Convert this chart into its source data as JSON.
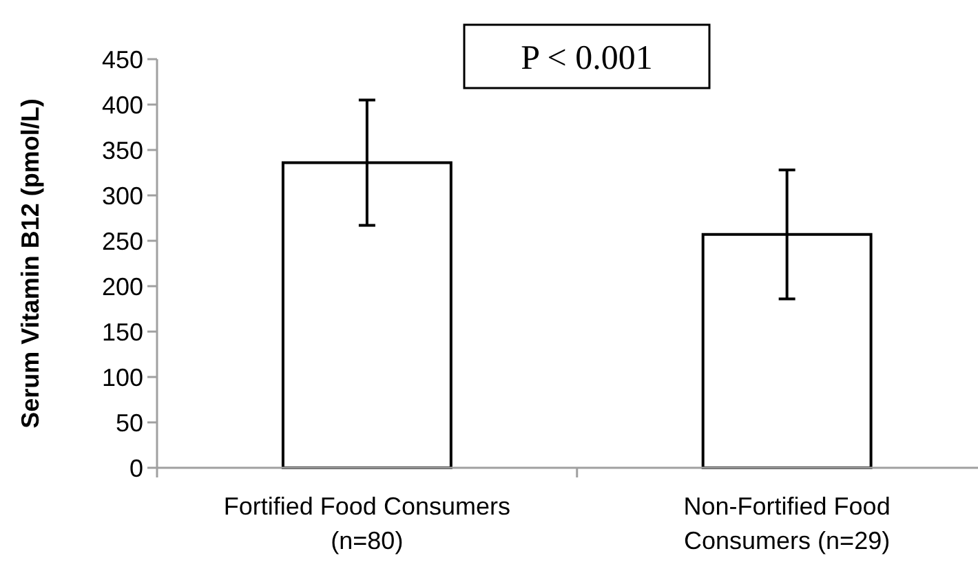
{
  "chart_data": {
    "type": "bar",
    "ylabel": "Serum Vitamin B12 (pmol/L)",
    "categories": [
      "Fortified Food Consumers\n(n=80)",
      "Non-Fortified Food\nConsumers (n=29)"
    ],
    "values": [
      336,
      257
    ],
    "errors": [
      69,
      71
    ],
    "color": "#ffffff",
    "ylim": [
      0,
      450
    ],
    "yticks": [
      0,
      50,
      100,
      150,
      200,
      250,
      300,
      350,
      400,
      450
    ],
    "annotations": [
      "P < 0.001"
    ],
    "grid": false
  }
}
